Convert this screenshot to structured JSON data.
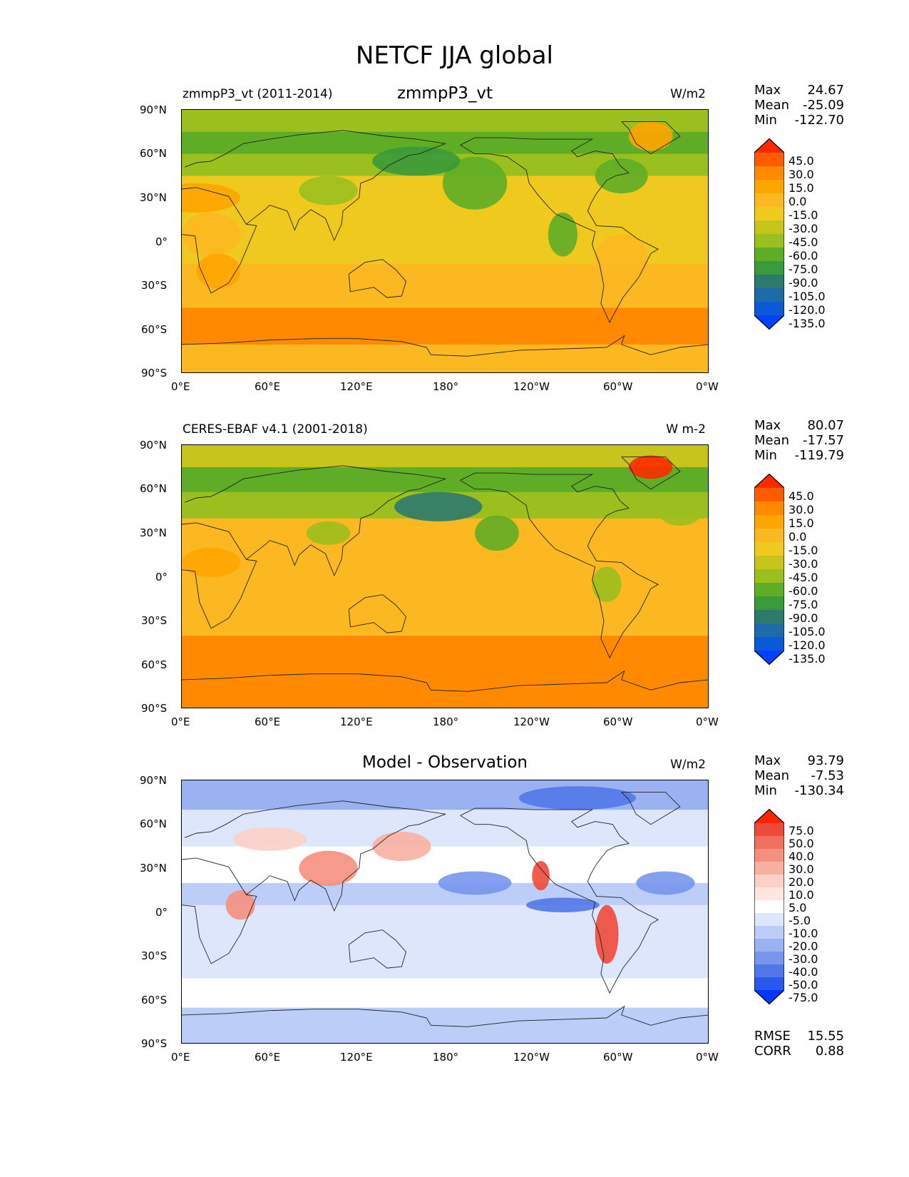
{
  "figure": {
    "title": "NETCF JJA global"
  },
  "axes": {
    "lat_ticks": [
      "90°N",
      "60°N",
      "30°N",
      "0°",
      "30°S",
      "60°S",
      "90°S"
    ],
    "lon_ticks": [
      "0°E",
      "60°E",
      "120°E",
      "180°",
      "120°W",
      "60°W",
      "0°W"
    ]
  },
  "panels": [
    {
      "left_title": "zmmpP3_vt (2011-2014)",
      "center_title": "zmmpP3_vt",
      "units": "W/m2",
      "stats": [
        {
          "label": "Max",
          "value": "24.67"
        },
        {
          "label": "Mean",
          "value": "-25.09"
        },
        {
          "label": "Min",
          "value": "-122.70"
        }
      ],
      "colorbar": {
        "labels": [
          "45.0",
          "30.0",
          "15.0",
          "0.0",
          "-15.0",
          "-30.0",
          "-45.0",
          "-60.0",
          "-75.0",
          "-90.0",
          "-105.0",
          "-120.0",
          "-135.0"
        ],
        "colors": [
          "#ff2a00",
          "#ff5c00",
          "#ff8a00",
          "#ffa500",
          "#fbb820",
          "#f0c91e",
          "#c8c41e",
          "#9bbf1e",
          "#5fad26",
          "#3a9a3a",
          "#2e7a6e",
          "#1f6aa8",
          "#0a5ad8",
          "#0040ff"
        ]
      },
      "map_bands": [
        {
          "lat": [
            90,
            75
          ],
          "color": "#9bbf1e"
        },
        {
          "lat": [
            75,
            60
          ],
          "color": "#5fad26"
        },
        {
          "lat": [
            60,
            45
          ],
          "color": "#9bbf1e"
        },
        {
          "lat": [
            45,
            15
          ],
          "color": "#f0c91e"
        },
        {
          "lat": [
            15,
            -15
          ],
          "color": "#f0c91e"
        },
        {
          "lat": [
            -15,
            -45
          ],
          "color": "#fbb820"
        },
        {
          "lat": [
            -45,
            -70
          ],
          "color": "#ff8a00"
        },
        {
          "lat": [
            -70,
            -90
          ],
          "color": "#fbb820"
        }
      ],
      "map_blobs": [
        {
          "lon": 200,
          "lat": 40,
          "rx": 22,
          "ry": 18,
          "color": "#5fad26"
        },
        {
          "lon": 160,
          "lat": 55,
          "rx": 30,
          "ry": 10,
          "color": "#3a9a3a"
        },
        {
          "lon": 100,
          "lat": 35,
          "rx": 20,
          "ry": 10,
          "color": "#9bbf1e"
        },
        {
          "lon": 20,
          "lat": 5,
          "rx": 20,
          "ry": 15,
          "color": "#fbb820"
        },
        {
          "lon": 25,
          "lat": -20,
          "rx": 15,
          "ry": 12,
          "color": "#ffa500"
        },
        {
          "lon": 300,
          "lat": -10,
          "rx": 18,
          "ry": 15,
          "color": "#fbb820"
        },
        {
          "lon": 320,
          "lat": 72,
          "rx": 15,
          "ry": 10,
          "color": "#ffa500"
        },
        {
          "lon": 10,
          "lat": 30,
          "rx": 30,
          "ry": 10,
          "color": "#ffa500"
        },
        {
          "lon": 260,
          "lat": 5,
          "rx": 10,
          "ry": 15,
          "color": "#5fad26"
        },
        {
          "lon": 300,
          "lat": 45,
          "rx": 18,
          "ry": 12,
          "color": "#5fad26"
        }
      ]
    },
    {
      "left_title": "CERES-EBAF v4.1 (2001-2018)",
      "center_title": "",
      "units": "W m-2",
      "stats": [
        {
          "label": "Max",
          "value": "80.07"
        },
        {
          "label": "Mean",
          "value": "-17.57"
        },
        {
          "label": "Min",
          "value": "-119.79"
        }
      ],
      "colorbar": {
        "labels": [
          "45.0",
          "30.0",
          "15.0",
          "0.0",
          "-15.0",
          "-30.0",
          "-45.0",
          "-60.0",
          "-75.0",
          "-90.0",
          "-105.0",
          "-120.0",
          "-135.0"
        ],
        "colors": [
          "#ff2a00",
          "#ff5c00",
          "#ff8a00",
          "#ffa500",
          "#fbb820",
          "#f0c91e",
          "#c8c41e",
          "#9bbf1e",
          "#5fad26",
          "#3a9a3a",
          "#2e7a6e",
          "#1f6aa8",
          "#0a5ad8",
          "#0040ff"
        ]
      },
      "map_bands": [
        {
          "lat": [
            90,
            75
          ],
          "color": "#c8c41e"
        },
        {
          "lat": [
            75,
            58
          ],
          "color": "#5fad26"
        },
        {
          "lat": [
            58,
            40
          ],
          "color": "#9bbf1e"
        },
        {
          "lat": [
            40,
            15
          ],
          "color": "#fbb820"
        },
        {
          "lat": [
            15,
            -15
          ],
          "color": "#fbb820"
        },
        {
          "lat": [
            -15,
            -40
          ],
          "color": "#fbb820"
        },
        {
          "lat": [
            -40,
            -75
          ],
          "color": "#ff8a00"
        },
        {
          "lat": [
            -75,
            -90
          ],
          "color": "#ff8a00"
        }
      ],
      "map_blobs": [
        {
          "lon": 175,
          "lat": 48,
          "rx": 30,
          "ry": 10,
          "color": "#2e7a6e"
        },
        {
          "lon": 215,
          "lat": 30,
          "rx": 15,
          "ry": 12,
          "color": "#5fad26"
        },
        {
          "lon": 100,
          "lat": 30,
          "rx": 15,
          "ry": 8,
          "color": "#9bbf1e"
        },
        {
          "lon": 320,
          "lat": 75,
          "rx": 15,
          "ry": 8,
          "color": "#ff2a00"
        },
        {
          "lon": 290,
          "lat": -5,
          "rx": 10,
          "ry": 12,
          "color": "#9bbf1e"
        },
        {
          "lon": 20,
          "lat": 10,
          "rx": 20,
          "ry": 10,
          "color": "#ffa500"
        },
        {
          "lon": 340,
          "lat": 45,
          "rx": 15,
          "ry": 10,
          "color": "#9bbf1e"
        }
      ]
    },
    {
      "left_title": "",
      "center_title": "Model - Observation",
      "units": "W/m2",
      "stats": [
        {
          "label": "Max",
          "value": "93.79"
        },
        {
          "label": "Mean",
          "value": "-7.53"
        },
        {
          "label": "Min",
          "value": "-130.34"
        }
      ],
      "colorbar": {
        "labels": [
          "75.0",
          "50.0",
          "40.0",
          "30.0",
          "20.0",
          "10.0",
          "5.0",
          "-5.0",
          "-10.0",
          "-20.0",
          "-30.0",
          "-40.0",
          "-50.0",
          "-75.0"
        ],
        "colors": [
          "#ff2400",
          "#ee4a3a",
          "#f2705e",
          "#f59080",
          "#f8b0a2",
          "#fbd0c6",
          "#fde6e0",
          "#ffffff",
          "#dde6fb",
          "#bccdf7",
          "#9ab2f2",
          "#7896ec",
          "#5277e8",
          "#2a58f0",
          "#0038ff"
        ]
      },
      "map_bands": [
        {
          "lat": [
            90,
            70
          ],
          "color": "#9ab2f2"
        },
        {
          "lat": [
            70,
            45
          ],
          "color": "#dde6fb"
        },
        {
          "lat": [
            45,
            20
          ],
          "color": "#ffffff"
        },
        {
          "lat": [
            20,
            5
          ],
          "color": "#bccdf7"
        },
        {
          "lat": [
            5,
            -20
          ],
          "color": "#dde6fb"
        },
        {
          "lat": [
            -20,
            -45
          ],
          "color": "#dde6fb"
        },
        {
          "lat": [
            -45,
            -65
          ],
          "color": "#ffffff"
        },
        {
          "lat": [
            -65,
            -90
          ],
          "color": "#bccdf7"
        }
      ],
      "map_blobs": [
        {
          "lon": 150,
          "lat": 45,
          "rx": 20,
          "ry": 10,
          "color": "#f8b0a2"
        },
        {
          "lon": 100,
          "lat": 30,
          "rx": 20,
          "ry": 12,
          "color": "#f59080"
        },
        {
          "lon": 60,
          "lat": 50,
          "rx": 25,
          "ry": 8,
          "color": "#fbd0c6"
        },
        {
          "lon": 290,
          "lat": -15,
          "rx": 8,
          "ry": 20,
          "color": "#ee4a3a"
        },
        {
          "lon": 245,
          "lat": 25,
          "rx": 6,
          "ry": 10,
          "color": "#ee4a3a"
        },
        {
          "lon": 270,
          "lat": 78,
          "rx": 40,
          "ry": 8,
          "color": "#5277e8"
        },
        {
          "lon": 200,
          "lat": 20,
          "rx": 25,
          "ry": 8,
          "color": "#7896ec"
        },
        {
          "lon": 330,
          "lat": 20,
          "rx": 20,
          "ry": 8,
          "color": "#7896ec"
        },
        {
          "lon": 40,
          "lat": 5,
          "rx": 10,
          "ry": 10,
          "color": "#f59080"
        },
        {
          "lon": 260,
          "lat": 5,
          "rx": 25,
          "ry": 5,
          "color": "#5277e8"
        }
      ],
      "metrics": [
        {
          "label": "RMSE",
          "value": "15.55"
        },
        {
          "label": "CORR",
          "value": "0.88"
        }
      ]
    }
  ]
}
